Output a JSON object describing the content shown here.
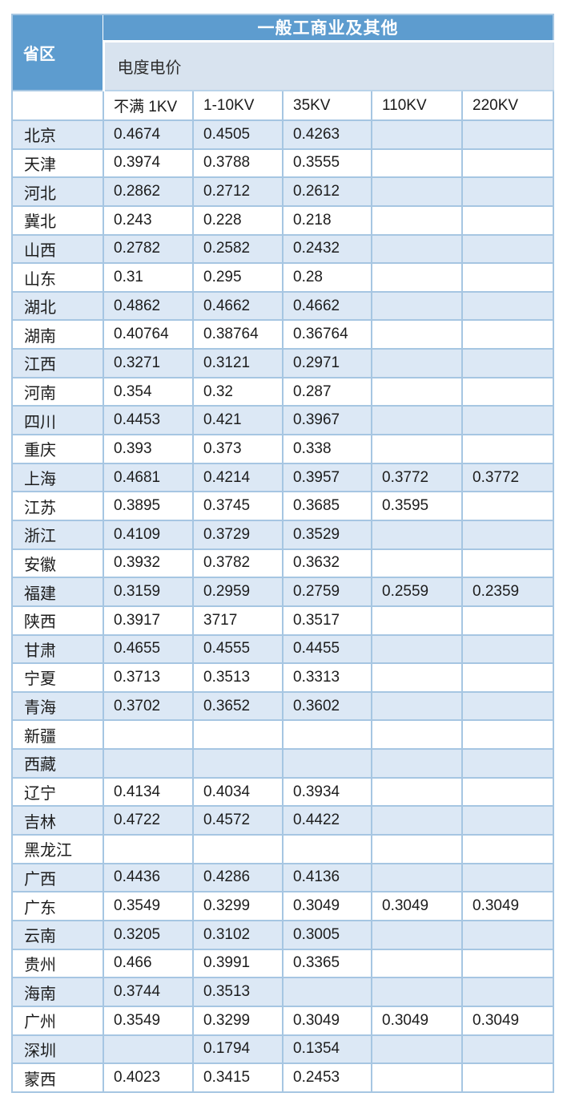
{
  "table": {
    "title": "一般工商业及其他",
    "region_header": "省区",
    "subheader": "电度电价",
    "kv_headers": [
      "不满 1KV",
      "1-10KV",
      "35KV",
      "110KV",
      "220KV"
    ],
    "rows": [
      {
        "province": "北京",
        "values": [
          "0.4674",
          "0.4505",
          "0.4263",
          "",
          ""
        ]
      },
      {
        "province": "天津",
        "values": [
          "0.3974",
          "0.3788",
          "0.3555",
          "",
          ""
        ]
      },
      {
        "province": "河北",
        "values": [
          "0.2862",
          "0.2712",
          "0.2612",
          "",
          ""
        ]
      },
      {
        "province": "冀北",
        "values": [
          "0.243",
          "0.228",
          "0.218",
          "",
          ""
        ]
      },
      {
        "province": "山西",
        "values": [
          "0.2782",
          "0.2582",
          "0.2432",
          "",
          ""
        ]
      },
      {
        "province": "山东",
        "values": [
          "0.31",
          "0.295",
          "0.28",
          "",
          ""
        ]
      },
      {
        "province": "湖北",
        "values": [
          "0.4862",
          "0.4662",
          "0.4662",
          "",
          ""
        ]
      },
      {
        "province": "湖南",
        "values": [
          "0.40764",
          "0.38764",
          "0.36764",
          "",
          ""
        ]
      },
      {
        "province": "江西",
        "values": [
          "0.3271",
          "0.3121",
          "0.2971",
          "",
          ""
        ]
      },
      {
        "province": "河南",
        "values": [
          "0.354",
          "0.32",
          "0.287",
          "",
          ""
        ]
      },
      {
        "province": "四川",
        "values": [
          "0.4453",
          "0.421",
          "0.3967",
          "",
          ""
        ]
      },
      {
        "province": "重庆",
        "values": [
          "0.393",
          "0.373",
          "0.338",
          "",
          ""
        ]
      },
      {
        "province": "上海",
        "values": [
          "0.4681",
          "0.4214",
          "0.3957",
          "0.3772",
          "0.3772"
        ]
      },
      {
        "province": "江苏",
        "values": [
          "0.3895",
          "0.3745",
          "0.3685",
          "0.3595",
          ""
        ]
      },
      {
        "province": "浙江",
        "values": [
          "0.4109",
          "0.3729",
          "0.3529",
          "",
          ""
        ]
      },
      {
        "province": "安徽",
        "values": [
          "0.3932",
          "0.3782",
          "0.3632",
          "",
          ""
        ]
      },
      {
        "province": "福建",
        "values": [
          "0.3159",
          "0.2959",
          "0.2759",
          "0.2559",
          "0.2359"
        ]
      },
      {
        "province": "陕西",
        "values": [
          "0.3917",
          "3717",
          "0.3517",
          "",
          ""
        ]
      },
      {
        "province": "甘肃",
        "values": [
          "0.4655",
          "0.4555",
          "0.4455",
          "",
          ""
        ]
      },
      {
        "province": "宁夏",
        "values": [
          "0.3713",
          "0.3513",
          "0.3313",
          "",
          ""
        ]
      },
      {
        "province": "青海",
        "values": [
          "0.3702",
          "0.3652",
          "0.3602",
          "",
          ""
        ]
      },
      {
        "province": "新疆",
        "values": [
          "",
          "",
          "",
          "",
          ""
        ]
      },
      {
        "province": "西藏",
        "values": [
          "",
          "",
          "",
          "",
          ""
        ]
      },
      {
        "province": "辽宁",
        "values": [
          "0.4134",
          "0.4034",
          "0.3934",
          "",
          ""
        ]
      },
      {
        "province": "吉林",
        "values": [
          "0.4722",
          "0.4572",
          "0.4422",
          "",
          ""
        ]
      },
      {
        "province": "黑龙江",
        "values": [
          "",
          "",
          "",
          "",
          ""
        ]
      },
      {
        "province": "广西",
        "values": [
          "0.4436",
          "0.4286",
          "0.4136",
          "",
          ""
        ]
      },
      {
        "province": "广东",
        "values": [
          "0.3549",
          "0.3299",
          "0.3049",
          "0.3049",
          "0.3049"
        ]
      },
      {
        "province": "云南",
        "values": [
          "0.3205",
          "0.3102",
          "0.3005",
          "",
          ""
        ]
      },
      {
        "province": "贵州",
        "values": [
          "0.466",
          "0.3991",
          "0.3365",
          "",
          ""
        ]
      },
      {
        "province": "海南",
        "values": [
          "0.3744",
          "0.3513",
          "",
          "",
          ""
        ]
      },
      {
        "province": "广州",
        "values": [
          "0.3549",
          "0.3299",
          "0.3049",
          "0.3049",
          "0.3049"
        ]
      },
      {
        "province": "深圳",
        "values": [
          "",
          "0.1794",
          "0.1354",
          "",
          ""
        ]
      },
      {
        "province": "蒙西",
        "values": [
          "0.4023",
          "0.3415",
          "0.2453",
          "",
          ""
        ]
      }
    ]
  },
  "colors": {
    "header_blue": "#5d9ccf",
    "subheader_bg": "#d8e3ef",
    "row_alt_blue": "#dce8f5",
    "row_white": "#ffffff",
    "border": "#a6c6e2",
    "header_text": "#ffffff",
    "body_text": "#1d1d1d"
  }
}
